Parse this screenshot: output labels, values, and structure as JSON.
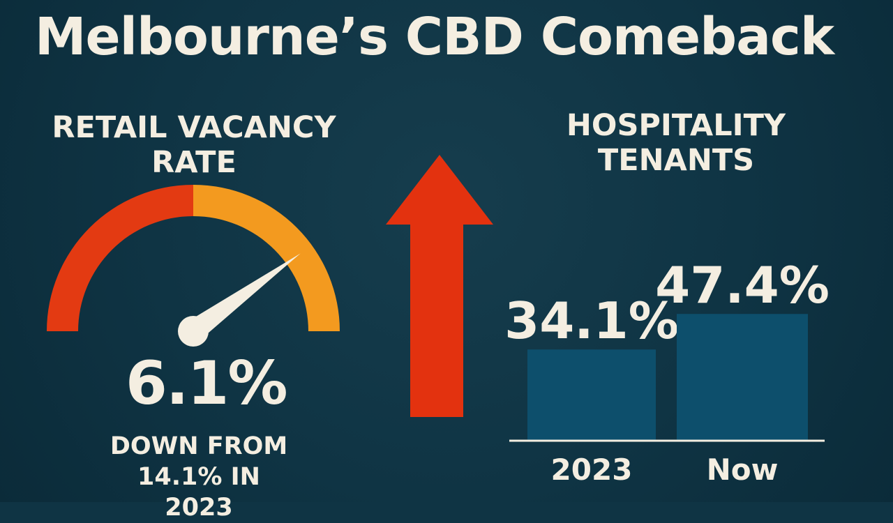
{
  "title": "Melbourne’s CBD Comeback",
  "retail": {
    "heading": "Retail Vacancy Rate",
    "value": "6.1%",
    "note": "Down from 14.1% in 2023"
  },
  "hospitality": {
    "heading": "Hospitality Tenants"
  },
  "chart_data": [
    {
      "type": "gauge",
      "title": "Retail Vacancy Rate",
      "value": 6.1,
      "unit": "%",
      "previous_value": 14.1,
      "previous_year": "2023",
      "label": "6.1%"
    },
    {
      "type": "bar",
      "title": "Hospitality Tenants",
      "categories": [
        "2023",
        "Now"
      ],
      "values": [
        34.1,
        47.4
      ],
      "value_labels": [
        "34.1%",
        "47.4%"
      ],
      "xlabel": "",
      "ylabel": "",
      "ylim": [
        0,
        75
      ]
    }
  ],
  "colors": {
    "background": "#0f3444",
    "text": "#f4eee1",
    "gauge_left": "#e33a12",
    "gauge_right": "#f39a1f",
    "arrow": "#e3320f",
    "bar": "#0d4f6c"
  },
  "icons": {
    "up_arrow": "up-arrow-icon"
  }
}
